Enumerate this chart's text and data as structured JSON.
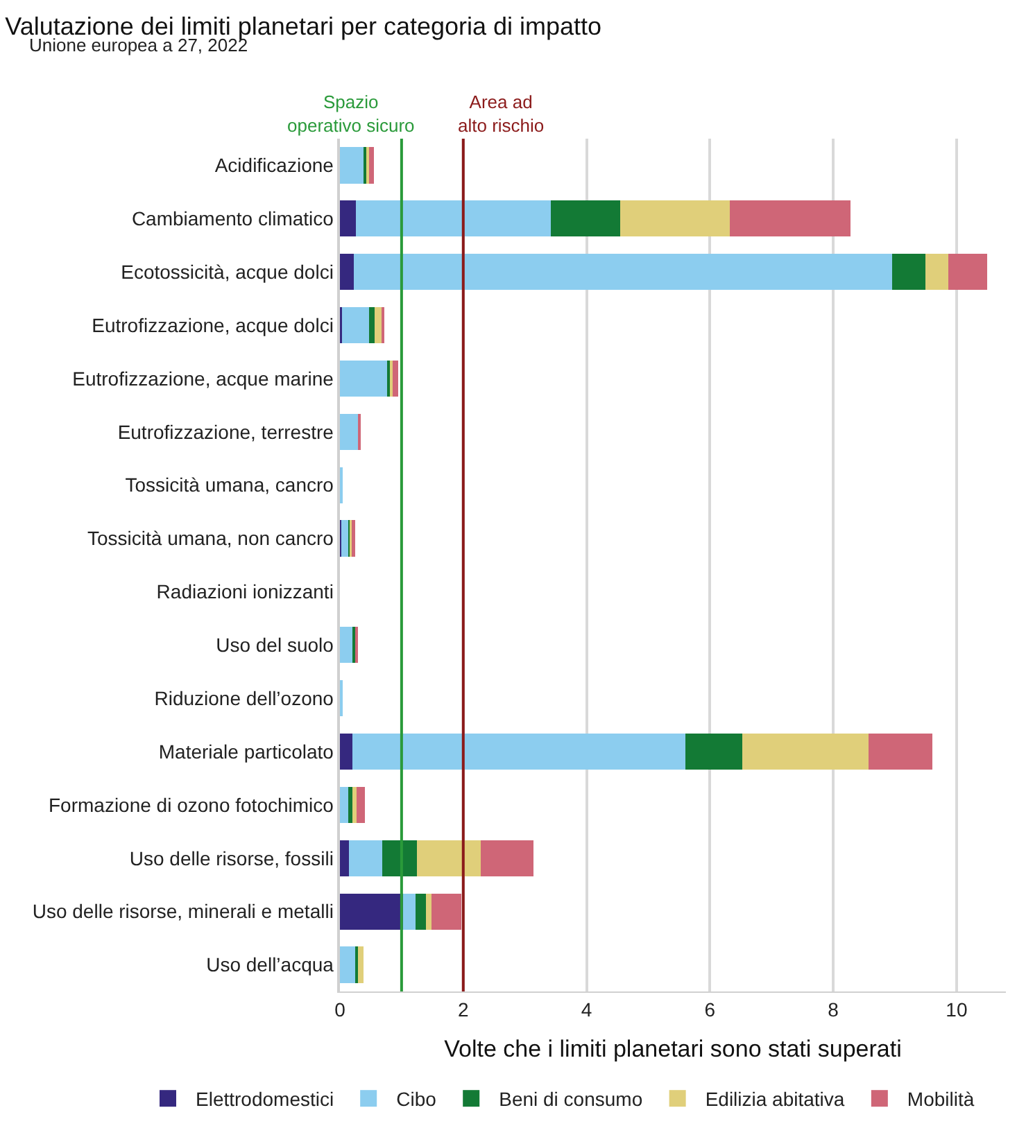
{
  "chart_data": {
    "type": "bar",
    "orientation": "horizontal",
    "stacked": true,
    "title": "Valutazione dei limiti planetari per categoria di impatto",
    "subtitle": "Unione europea a 27, 2022",
    "xlabel": "Volte che i limiti planetari sono stati superati",
    "categories": [
      "Acidificazione",
      "Cambiamento climatico",
      "Ecotossicità, acque dolci",
      "Eutrofizzazione, acque dolci",
      "Eutrofizzazione, acque marine",
      "Eutrofizzazione, terrestre",
      "Tossicità umana, cancro",
      "Tossicità umana, non cancro",
      "Radiazioni ionizzanti",
      "Uso del suolo",
      "Riduzione dell’ozono",
      "Materiale particolato",
      "Formazione di ozono fotochimico",
      "Uso delle risorse, fossili",
      "Uso delle risorse, minerali e metalli",
      "Uso dell’acqua"
    ],
    "series": [
      {
        "name": "Elettrodomestici",
        "color": "#35287f",
        "values": [
          0,
          0.26,
          0.22,
          0.03,
          0,
          0,
          0,
          0.02,
          0,
          0,
          0,
          0.2,
          0,
          0.15,
          1.02,
          0
        ]
      },
      {
        "name": "Cibo",
        "color": "#8ccdef",
        "values": [
          0.4,
          3.16,
          8.74,
          0.44,
          0.76,
          0.29,
          0.03,
          0.12,
          0,
          0.21,
          0.03,
          5.4,
          0.13,
          0.54,
          0.21,
          0.25
        ]
      },
      {
        "name": "Beni di consumo",
        "color": "#137a35",
        "values": [
          0.03,
          1.13,
          0.53,
          0.09,
          0.06,
          0,
          0,
          0.03,
          0,
          0.04,
          0,
          0.93,
          0.07,
          0.56,
          0.17,
          0.04
        ]
      },
      {
        "name": "Edilizia abitativa",
        "color": "#e0cf7a",
        "values": [
          0.04,
          1.77,
          0.38,
          0.12,
          0.04,
          0,
          0,
          0.02,
          0,
          0,
          0,
          2.04,
          0.07,
          1.03,
          0.09,
          0.09
        ]
      },
      {
        "name": "Mobilità",
        "color": "#cf6677",
        "values": [
          0.08,
          1.96,
          0.63,
          0.03,
          0.08,
          0.05,
          0,
          0.06,
          0,
          0.04,
          0,
          1.04,
          0.13,
          0.86,
          0.48,
          0
        ]
      }
    ],
    "xlim": [
      0,
      10.8
    ],
    "xticks": [
      0,
      2,
      4,
      6,
      8,
      10
    ],
    "grid": "x",
    "legend": "bottom",
    "ref_lines": [
      {
        "axis": "x",
        "value": 1,
        "label": "Spazio\noperativo sicuro",
        "color": "#2a9a3a"
      },
      {
        "axis": "x",
        "value": 2,
        "label": "Area ad\nalto rischio",
        "color": "#8b1a1a"
      }
    ]
  }
}
